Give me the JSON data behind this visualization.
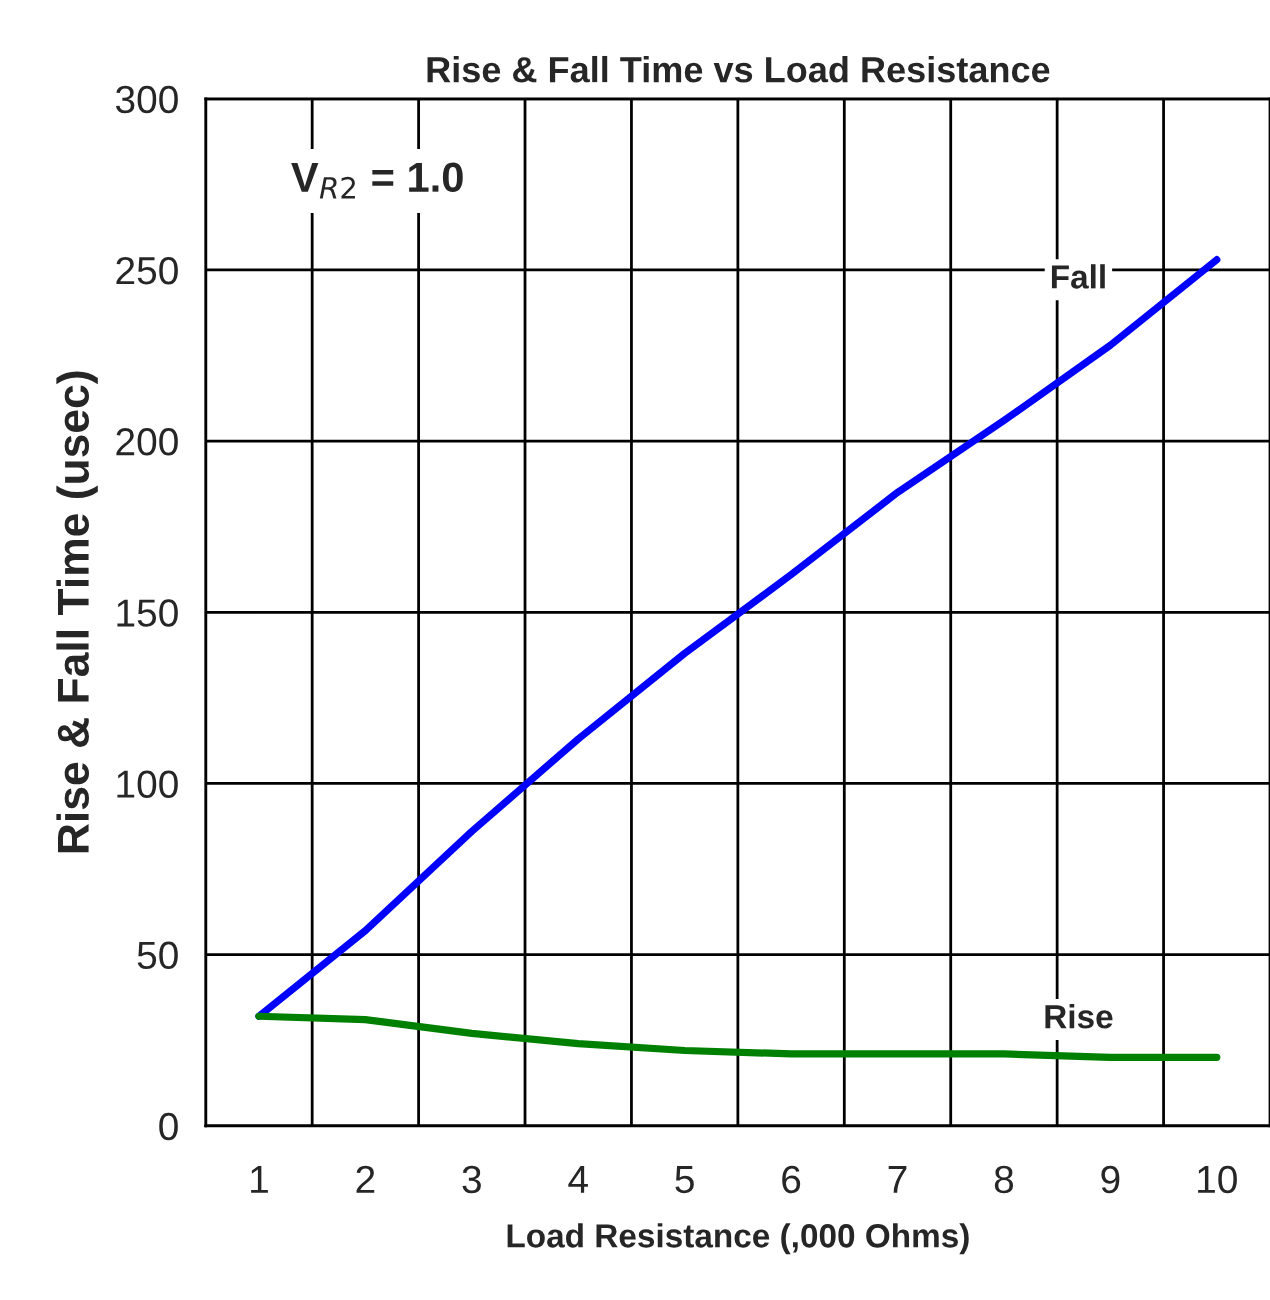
{
  "chart_data": {
    "type": "line",
    "title": "Rise & Fall Time vs Load Resistance",
    "xlabel": "Load Resistance (,000 Ohms)",
    "ylabel": "Rise & Fall Time (usec)",
    "categories": [
      "1",
      "2",
      "3",
      "4",
      "5",
      "6",
      "7",
      "8",
      "9",
      "10"
    ],
    "series": [
      {
        "name": "Fall",
        "color": "#0000ff",
        "values": [
          32,
          57,
          86,
          113,
          138,
          161,
          185,
          206,
          228,
          253
        ]
      },
      {
        "name": "Rise",
        "color": "#008000",
        "values": [
          32,
          31,
          27,
          24,
          22,
          21,
          21,
          21,
          20,
          20
        ]
      }
    ],
    "ylim": [
      0,
      300
    ],
    "yticks": [
      0,
      50,
      100,
      150,
      200,
      250,
      300
    ],
    "grid": true,
    "legend": false,
    "marker": "none",
    "line_style": "solid",
    "annotations": [
      "V$_{R2}$ = 1.0"
    ]
  }
}
